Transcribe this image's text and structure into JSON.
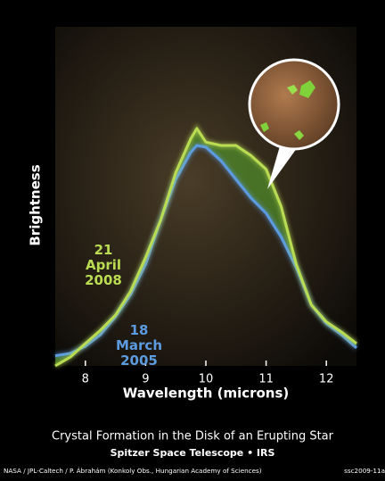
{
  "chart_data": {
    "type": "line",
    "title": "Crystal Formation in the Disk of an Erupting Star",
    "subtitle": "Spitzer Space Telescope • IRS",
    "credit": "NASA / JPL-Caltech / P. Ábrahám (Konkoly Obs., Hungarian Academy of Sciences)",
    "image_id": "ssc2009-11a",
    "xlabel": "Wavelength (microns)",
    "ylabel": "Brightness",
    "x": [
      7.5,
      7.75,
      8.0,
      8.25,
      8.5,
      8.75,
      9.0,
      9.25,
      9.5,
      9.75,
      9.85,
      10.0,
      10.25,
      10.5,
      10.75,
      11.0,
      11.25,
      11.5,
      11.75,
      12.0,
      12.25,
      12.5
    ],
    "series": [
      {
        "name": "21 April 2008",
        "color": "#b9dc52",
        "values": [
          0.0,
          0.26,
          0.66,
          1.05,
          1.5,
          2.2,
          3.2,
          4.3,
          5.7,
          6.7,
          7.0,
          6.6,
          6.5,
          6.5,
          6.2,
          5.8,
          4.7,
          3.0,
          1.8,
          1.3,
          1.0,
          0.66
        ]
      },
      {
        "name": "18 March 2005",
        "color": "#5c9be0",
        "values": [
          0.3,
          0.37,
          0.58,
          0.92,
          1.45,
          2.1,
          3.0,
          4.3,
          5.5,
          6.3,
          6.5,
          6.45,
          6.05,
          5.5,
          4.95,
          4.5,
          3.8,
          2.9,
          1.8,
          1.25,
          0.92,
          0.53
        ]
      }
    ],
    "xlim": [
      7.5,
      12.5
    ],
    "xticks": [
      8,
      9,
      10,
      11,
      12
    ],
    "ylim": [
      0,
      10
    ]
  }
}
